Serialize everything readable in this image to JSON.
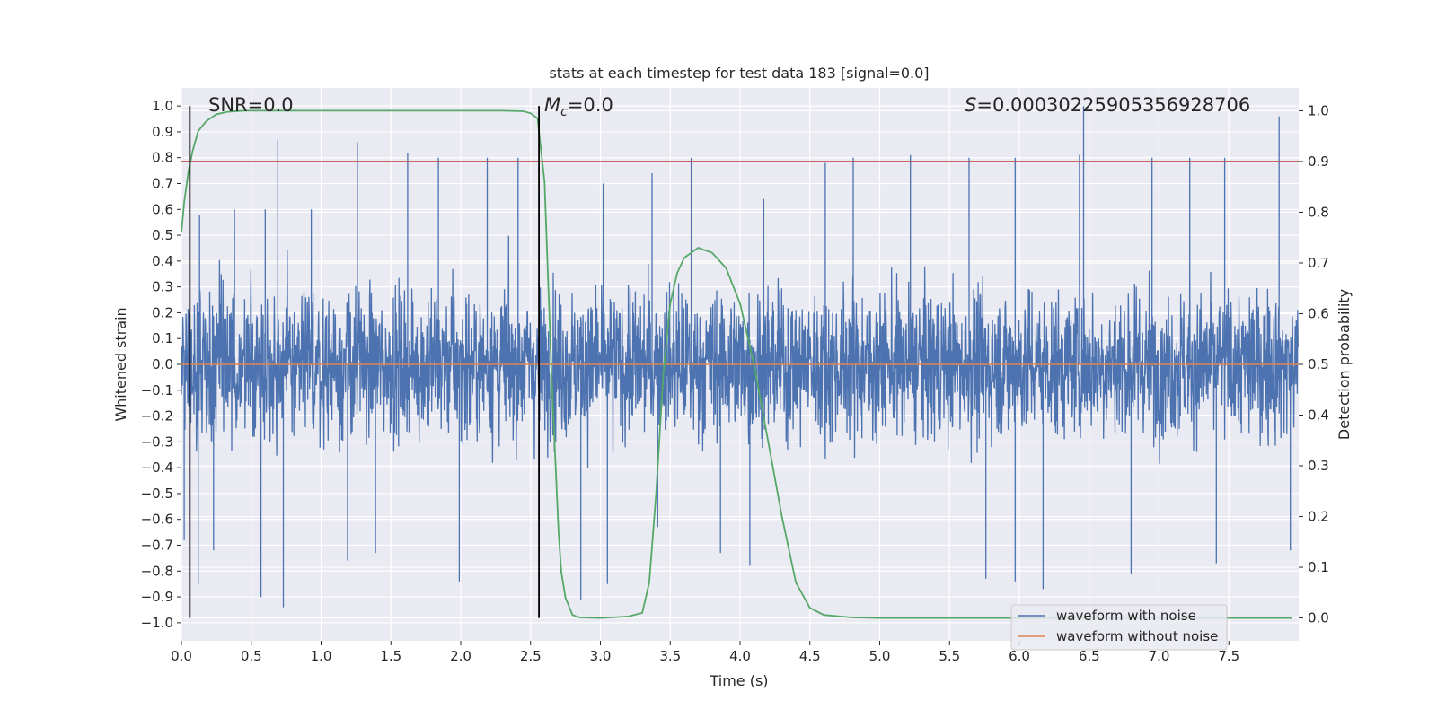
{
  "chart_data": {
    "type": "line",
    "title": "stats at each timestep for test data 183 [signal=0.0]",
    "xlabel": "Time (s)",
    "ylabel_left": "Whitened strain",
    "ylabel_right": "Detection probability",
    "xlim": [
      0.0,
      8.0
    ],
    "ylim_left": [
      -1.07,
      1.07
    ],
    "ylim_right": [
      -0.045,
      1.045
    ],
    "x_ticks": [
      "0.0",
      "0.5",
      "1.0",
      "1.5",
      "2.0",
      "2.5",
      "3.0",
      "3.5",
      "4.0",
      "4.5",
      "5.0",
      "5.5",
      "6.0",
      "6.5",
      "7.0",
      "7.5"
    ],
    "x_tick_values": [
      0.0,
      0.5,
      1.0,
      1.5,
      2.0,
      2.5,
      3.0,
      3.5,
      4.0,
      4.5,
      5.0,
      5.5,
      6.0,
      6.5,
      7.0,
      7.5
    ],
    "y_left_ticks": [
      "1.0",
      "0.9",
      "0.8",
      "0.7",
      "0.6",
      "0.5",
      "0.4",
      "0.3",
      "0.2",
      "0.1",
      "0.0",
      "−0.1",
      "−0.2",
      "−0.3",
      "−0.4",
      "−0.5",
      "−0.6",
      "−0.7",
      "−0.8",
      "−0.9",
      "−1.0"
    ],
    "y_left_tick_values": [
      1.0,
      0.9,
      0.8,
      0.7,
      0.6,
      0.5,
      0.4,
      0.3,
      0.2,
      0.1,
      0.0,
      -0.1,
      -0.2,
      -0.3,
      -0.4,
      -0.5,
      -0.6,
      -0.7,
      -0.8,
      -0.9,
      -1.0
    ],
    "y_right_ticks": [
      "1.0",
      "0.9",
      "0.8",
      "0.7",
      "0.6",
      "0.5",
      "0.4",
      "0.3",
      "0.2",
      "0.1",
      "0.0"
    ],
    "y_right_tick_values": [
      1.0,
      0.9,
      0.8,
      0.7,
      0.6,
      0.5,
      0.4,
      0.3,
      0.2,
      0.1,
      0.0
    ],
    "grid": true,
    "annotations": {
      "snr": "SNR=0.0",
      "mc_symbol": "M",
      "mc_sub": "c",
      "mc_value": "=0.0",
      "s_symbol": "S",
      "s_value": "=0.0003022590535692870​6"
    },
    "vertical_lines_x": [
      0.06,
      2.56
    ],
    "threshold_line": {
      "axis": "right",
      "y": 0.9,
      "color": "#c44e52"
    },
    "series": [
      {
        "name": "waveform with noise",
        "axis": "left",
        "color": "#4c72b0",
        "description": "dense noise, peak envelope",
        "peaks_pos": [
          [
            0.13,
            0.58
          ],
          [
            0.38,
            0.6
          ],
          [
            0.6,
            0.6
          ],
          [
            0.69,
            0.87
          ],
          [
            0.93,
            0.6
          ],
          [
            1.26,
            0.86
          ],
          [
            1.62,
            0.82
          ],
          [
            1.84,
            0.8
          ],
          [
            2.19,
            0.8
          ],
          [
            2.41,
            0.8
          ],
          [
            3.02,
            0.7
          ],
          [
            3.37,
            0.74
          ],
          [
            3.65,
            0.8
          ],
          [
            4.17,
            0.64
          ],
          [
            4.61,
            0.78
          ],
          [
            4.81,
            0.8
          ],
          [
            5.22,
            0.81
          ],
          [
            5.64,
            0.8
          ],
          [
            5.97,
            0.8
          ],
          [
            6.43,
            0.81
          ],
          [
            6.46,
            1.0
          ],
          [
            6.95,
            0.8
          ],
          [
            7.22,
            0.8
          ],
          [
            7.47,
            0.8
          ],
          [
            7.86,
            0.96
          ]
        ],
        "peaks_neg": [
          [
            0.02,
            -0.68
          ],
          [
            0.12,
            -0.85
          ],
          [
            0.23,
            -0.72
          ],
          [
            0.57,
            -0.9
          ],
          [
            0.73,
            -0.94
          ],
          [
            1.19,
            -0.76
          ],
          [
            1.39,
            -0.73
          ],
          [
            1.99,
            -0.84
          ],
          [
            2.86,
            -0.91
          ],
          [
            3.05,
            -0.85
          ],
          [
            3.41,
            -0.63
          ],
          [
            3.86,
            -0.73
          ],
          [
            4.07,
            -0.78
          ],
          [
            5.76,
            -0.83
          ],
          [
            5.97,
            -0.84
          ],
          [
            6.17,
            -0.87
          ],
          [
            6.8,
            -0.81
          ],
          [
            7.41,
            -0.77
          ],
          [
            7.94,
            -0.72
          ]
        ]
      },
      {
        "name": "waveform without noise",
        "axis": "left",
        "color": "#dd8452",
        "x": [
          0.0,
          8.0
        ],
        "y": [
          0.0,
          0.0
        ]
      },
      {
        "name": "detection probability",
        "axis": "right",
        "color": "#55a868",
        "x": [
          0.0,
          0.02,
          0.05,
          0.08,
          0.12,
          0.18,
          0.25,
          0.33,
          0.45,
          0.6,
          1.0,
          1.5,
          2.0,
          2.3,
          2.45,
          2.5,
          2.55,
          2.6,
          2.65,
          2.7,
          2.72,
          2.75,
          2.8,
          2.85,
          3.0,
          3.2,
          3.3,
          3.35,
          3.4,
          3.45,
          3.5,
          3.55,
          3.6,
          3.7,
          3.8,
          3.9,
          4.0,
          4.1,
          4.2,
          4.3,
          4.4,
          4.5,
          4.6,
          4.8,
          5.0,
          6.0,
          7.0,
          7.8,
          7.95
        ],
        "y": [
          0.76,
          0.82,
          0.88,
          0.92,
          0.96,
          0.98,
          0.993,
          0.998,
          1.0,
          1.0,
          1.0,
          1.0,
          1.0,
          1.0,
          0.999,
          0.995,
          0.985,
          0.86,
          0.48,
          0.17,
          0.09,
          0.04,
          0.006,
          0.001,
          0.0,
          0.003,
          0.01,
          0.07,
          0.25,
          0.48,
          0.62,
          0.68,
          0.71,
          0.73,
          0.72,
          0.69,
          0.62,
          0.5,
          0.35,
          0.2,
          0.07,
          0.02,
          0.006,
          0.001,
          0.0,
          0.0,
          0.0,
          0.0,
          0.0
        ]
      }
    ],
    "legend": {
      "position": "lower-right",
      "entries": [
        {
          "label": "waveform with noise",
          "color": "#4c72b0"
        },
        {
          "label": "waveform without noise",
          "color": "#dd8452"
        }
      ]
    }
  }
}
